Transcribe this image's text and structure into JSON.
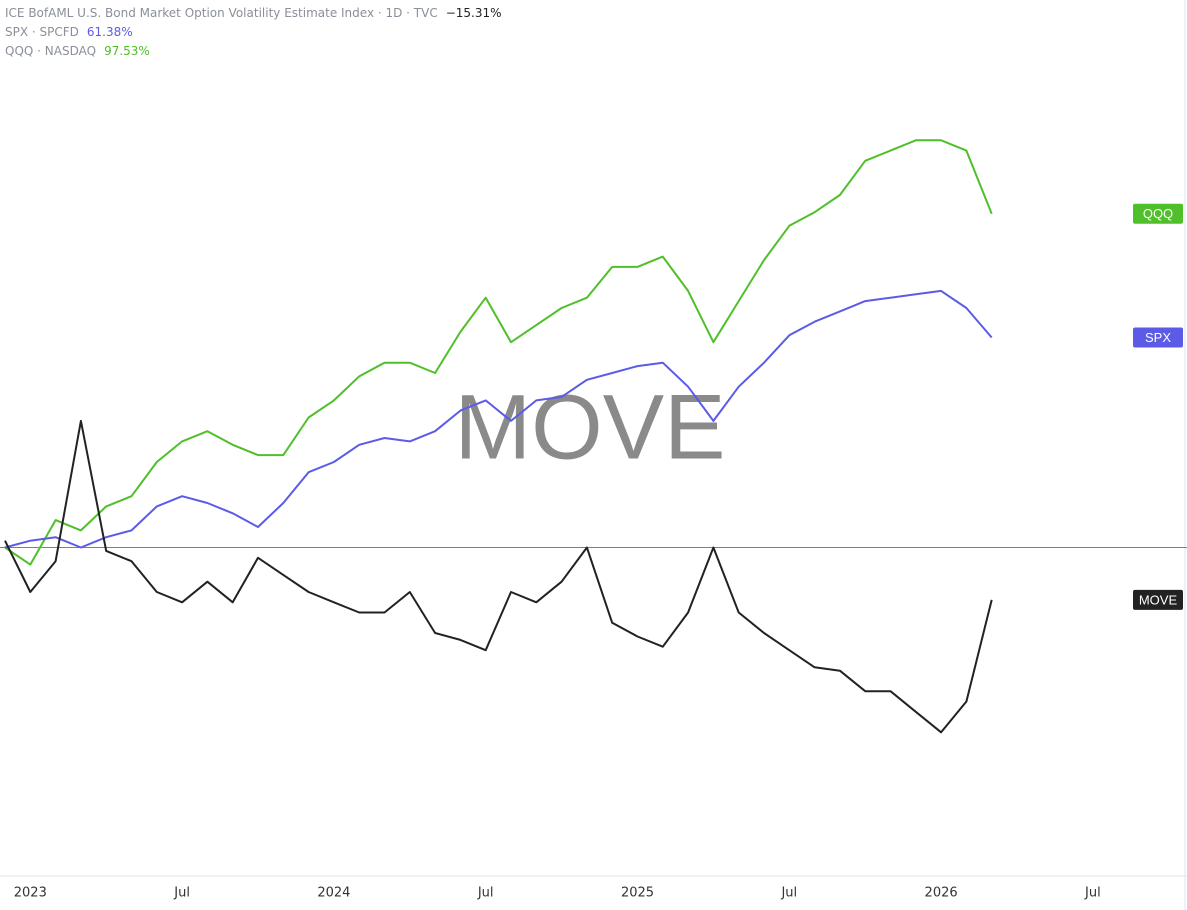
{
  "chart_data": {
    "type": "line",
    "x": [
      "2022-12",
      "2023-01",
      "2023-02",
      "2023-03",
      "2023-04",
      "2023-05",
      "2023-06",
      "2023-07",
      "2023-08",
      "2023-09",
      "2023-10",
      "2023-11",
      "2023-12",
      "2024-01",
      "2024-02",
      "2024-03",
      "2024-04",
      "2024-05",
      "2024-06",
      "2024-07",
      "2024-08",
      "2024-09",
      "2024-10",
      "2024-11",
      "2024-12",
      "2025-01",
      "2025-02",
      "2025-03",
      "2025-04",
      "2025-05",
      "2025-06",
      "2025-07",
      "2025-08",
      "2025-09",
      "2025-10",
      "2025-11",
      "2025-12",
      "2026-01",
      "2026-02",
      "2026-03"
    ],
    "series": [
      {
        "name": "ICE BofAML U.S. Bond Market Option Volatility Estimate Index · 1D · TVC",
        "tag": "MOVE",
        "color": "#222222",
        "values": [
          2,
          -13,
          -4,
          37,
          -1,
          -4,
          -13,
          -16,
          -10,
          -16,
          -3,
          -8,
          -13,
          -16,
          -19,
          -19,
          -13,
          -25,
          -27,
          -30,
          -13,
          -16,
          -10,
          0,
          -22,
          -26,
          -29,
          -19,
          0,
          -19,
          -25,
          -30,
          -35,
          -36,
          -42,
          -42,
          -48,
          -54,
          -45,
          -15.31
        ],
        "value_labels": [
          null,
          null,
          null,
          null,
          null,
          null,
          null,
          null,
          null,
          null,
          null,
          null,
          null,
          null,
          null,
          null,
          null,
          null,
          null,
          null,
          null,
          null,
          null,
          null,
          null,
          null,
          null,
          null,
          null,
          null,
          null,
          null,
          null,
          null,
          null,
          null,
          null,
          null,
          null,
          "−15.31%"
        ]
      },
      {
        "name": "SPX · SPCFD",
        "tag": "SPX",
        "color": "#5b5be8",
        "values": [
          0,
          2,
          3,
          0,
          3,
          5,
          12,
          15,
          13,
          10,
          6,
          13,
          22,
          25,
          30,
          32,
          31,
          34,
          40,
          43,
          37,
          43,
          44,
          49,
          51,
          53,
          54,
          47,
          37,
          47,
          54,
          62,
          66,
          69,
          72,
          73,
          74,
          75,
          70,
          61.38
        ],
        "value_labels": [
          null,
          null,
          null,
          null,
          null,
          null,
          null,
          null,
          null,
          null,
          null,
          null,
          null,
          null,
          null,
          null,
          null,
          null,
          null,
          null,
          null,
          null,
          null,
          null,
          null,
          null,
          null,
          null,
          null,
          null,
          null,
          null,
          null,
          null,
          null,
          null,
          null,
          null,
          null,
          "61.38%"
        ]
      },
      {
        "name": "QQQ · NASDAQ",
        "tag": "QQQ",
        "color": "#4fbf2a",
        "values": [
          0,
          -5,
          8,
          5,
          12,
          15,
          25,
          31,
          34,
          30,
          27,
          27,
          38,
          43,
          50,
          54,
          54,
          51,
          63,
          73,
          60,
          65,
          70,
          73,
          82,
          82,
          85,
          75,
          60,
          72,
          84,
          94,
          98,
          103,
          113,
          116,
          119,
          119,
          116,
          97.53
        ],
        "value_labels": [
          null,
          null,
          null,
          null,
          null,
          null,
          null,
          null,
          null,
          null,
          null,
          null,
          null,
          null,
          null,
          null,
          null,
          null,
          null,
          null,
          null,
          null,
          null,
          null,
          null,
          null,
          null,
          null,
          null,
          null,
          null,
          null,
          null,
          null,
          null,
          null,
          null,
          null,
          null,
          "97.53%"
        ]
      }
    ],
    "ylim": [
      -96,
      160
    ],
    "xticks": [
      {
        "value": "2023-01",
        "label": "2023"
      },
      {
        "value": "2023-07",
        "label": "Jul"
      },
      {
        "value": "2024-01",
        "label": "2024"
      },
      {
        "value": "2024-07",
        "label": "Jul"
      },
      {
        "value": "2025-01",
        "label": "2025"
      },
      {
        "value": "2025-07",
        "label": "Jul"
      },
      {
        "value": "2026-01",
        "label": "2026"
      },
      {
        "value": "2026-07",
        "label": "Jul"
      }
    ],
    "watermark": "MOVE"
  }
}
